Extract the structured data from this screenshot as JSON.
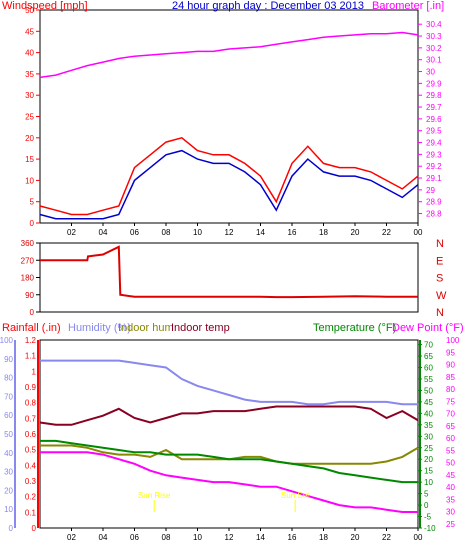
{
  "colors": {
    "wind": "#ff0000",
    "wind_avg": "#0000cc",
    "barometer": "#ff00ff",
    "direction": "#dd0000",
    "rainfall": "#ff0000",
    "humidity": "#8888ee",
    "indoor_hum": "#888800",
    "indoor_temp": "#880022",
    "temperature": "#008800",
    "dew_point": "#ff00ff",
    "axis_dark": "#000000",
    "grid": "#cccccc",
    "sun": "#ffff00"
  },
  "chart_data": [
    {
      "type": "line",
      "title": "24 hour graph day : December 03 2013",
      "left_label": "Windspeed [mph]",
      "right_label": "Barometer [.in]",
      "x_ticks": [
        "02",
        "04",
        "06",
        "08",
        "10",
        "12",
        "14",
        "16",
        "18",
        "20",
        "22",
        "00"
      ],
      "left_ticks": [
        "0",
        "5",
        "10",
        "15",
        "20",
        "25",
        "30",
        "35",
        "40",
        "45",
        "50"
      ],
      "right_ticks": [
        "28.8",
        "28.9",
        "29",
        "29.1",
        "29.2",
        "29.3",
        "29.4",
        "29.5",
        "29.6",
        "29.7",
        "29.8",
        "29.9",
        "30",
        "30.1",
        "30.2",
        "30.3",
        "30.4"
      ],
      "ylim_left": [
        0,
        50
      ],
      "ylim_right": [
        28.72,
        30.52
      ],
      "x": [
        0,
        1,
        2,
        3,
        4,
        5,
        6,
        7,
        8,
        9,
        10,
        11,
        12,
        13,
        14,
        15,
        16,
        17,
        18,
        19,
        20,
        21,
        22,
        23,
        24
      ],
      "series": [
        {
          "key": "wind",
          "axis": "left",
          "values": [
            4,
            3,
            2,
            2,
            3,
            4,
            13,
            16,
            19,
            20,
            17,
            16,
            16,
            14,
            11,
            5,
            14,
            18,
            14,
            13,
            13,
            12,
            10,
            8,
            11
          ]
        },
        {
          "key": "wind_avg",
          "axis": "left",
          "values": [
            2,
            1,
            1,
            1,
            1,
            2,
            10,
            13,
            16,
            17,
            15,
            14,
            14,
            12,
            9,
            3,
            11,
            15,
            12,
            11,
            11,
            10,
            8,
            6,
            9
          ]
        },
        {
          "key": "barometer",
          "axis": "right",
          "values": [
            29.95,
            29.97,
            30.01,
            30.05,
            30.08,
            30.11,
            30.13,
            30.14,
            30.15,
            30.16,
            30.17,
            30.17,
            30.19,
            30.2,
            30.21,
            30.23,
            30.25,
            30.27,
            30.29,
            30.3,
            30.31,
            30.32,
            30.32,
            30.33,
            30.31
          ]
        }
      ]
    },
    {
      "type": "line",
      "right_ticks": [
        "N",
        "W",
        "S",
        "E",
        "N"
      ],
      "left_ticks": [
        "0",
        "90",
        "180",
        "270",
        "360"
      ],
      "ylim": [
        0,
        360
      ],
      "x": [
        0,
        1,
        2,
        3,
        3.05,
        4,
        5,
        5.1,
        6,
        8,
        10,
        12,
        14,
        15,
        16,
        18,
        20,
        22,
        24
      ],
      "series": [
        {
          "key": "direction",
          "values": [
            270,
            270,
            270,
            270,
            290,
            300,
            340,
            90,
            80,
            80,
            80,
            80,
            80,
            78,
            78,
            80,
            82,
            80,
            80
          ]
        }
      ]
    },
    {
      "type": "line",
      "labels": {
        "rainfall": "Rainfall (.in)",
        "humidity": "Humidity (%)",
        "indoor_hum": "Indoor hum",
        "indoor_temp": "Indoor temp",
        "temperature": "Temperature (°F)",
        "dew_point": "Dew Point (°F)"
      },
      "sunrise_label": "Sun Rise",
      "sunset_label": "Sun Set",
      "sunrise_x": 7.25,
      "sunset_x": 16.2,
      "x_ticks": [
        "02",
        "04",
        "06",
        "08",
        "10",
        "12",
        "14",
        "16",
        "18",
        "20",
        "22",
        "00"
      ],
      "axes": {
        "rain_ticks": [
          "0",
          "0.1",
          "0.2",
          "0.3",
          "0.4",
          "0.5",
          "0.6",
          "0.7",
          "0.8",
          "0.9",
          "1",
          "1.1",
          "1.2"
        ],
        "humidity_ticks": [
          "0",
          "10",
          "20",
          "30",
          "40",
          "50",
          "60",
          "70",
          "80",
          "90",
          "100"
        ],
        "temperature_ticks": [
          "-10",
          "-5",
          "0",
          "5",
          "10",
          "15",
          "20",
          "25",
          "30",
          "35",
          "40",
          "45",
          "50",
          "55",
          "60",
          "65",
          "70"
        ],
        "dewpoint_ticks": [
          "25",
          "30",
          "35",
          "40",
          "45",
          "50",
          "55",
          "60",
          "65",
          "70",
          "75",
          "80",
          "85",
          "90",
          "95",
          "100"
        ]
      },
      "ylim_temperature": [
        -10,
        72
      ],
      "x": [
        0,
        1,
        2,
        3,
        4,
        5,
        6,
        7,
        8,
        9,
        10,
        11,
        12,
        13,
        14,
        15,
        16,
        17,
        18,
        19,
        20,
        21,
        22,
        23,
        24
      ],
      "series": [
        {
          "key": "humidity",
          "axis": "temperature",
          "values": [
            63,
            63,
            63,
            63,
            63,
            63,
            62,
            61,
            60,
            55,
            52,
            50,
            48,
            46,
            45,
            45,
            45,
            44,
            44,
            45,
            45,
            45,
            45,
            44,
            44
          ]
        },
        {
          "key": "indoor_temp",
          "axis": "temperature",
          "values": [
            36,
            35,
            35,
            37,
            39,
            42,
            38,
            36,
            38,
            40,
            40,
            41,
            41,
            41,
            42,
            43,
            43,
            43,
            43,
            43,
            43,
            42,
            38,
            41,
            37
          ]
        },
        {
          "key": "indoor_hum",
          "axis": "temperature",
          "values": [
            26,
            26,
            26,
            25,
            23,
            22,
            22,
            21,
            24,
            20,
            20,
            20,
            20,
            21,
            21,
            19,
            18,
            18,
            18,
            18,
            18,
            18,
            19,
            21,
            25
          ]
        },
        {
          "key": "temperature",
          "axis": "temperature",
          "values": [
            28,
            28,
            27,
            26,
            25,
            24,
            23,
            23,
            22,
            22,
            22,
            21,
            20,
            20,
            20,
            19,
            18,
            17,
            16,
            14,
            13,
            12,
            11,
            10,
            10
          ]
        },
        {
          "key": "dew_point",
          "axis": "temperature",
          "values": [
            23,
            23,
            23,
            23,
            22,
            20,
            18,
            15,
            13,
            12,
            11,
            10,
            10,
            9,
            8,
            8,
            6,
            4,
            2,
            0,
            -1,
            -1,
            -2,
            -3,
            -3
          ]
        }
      ]
    }
  ]
}
